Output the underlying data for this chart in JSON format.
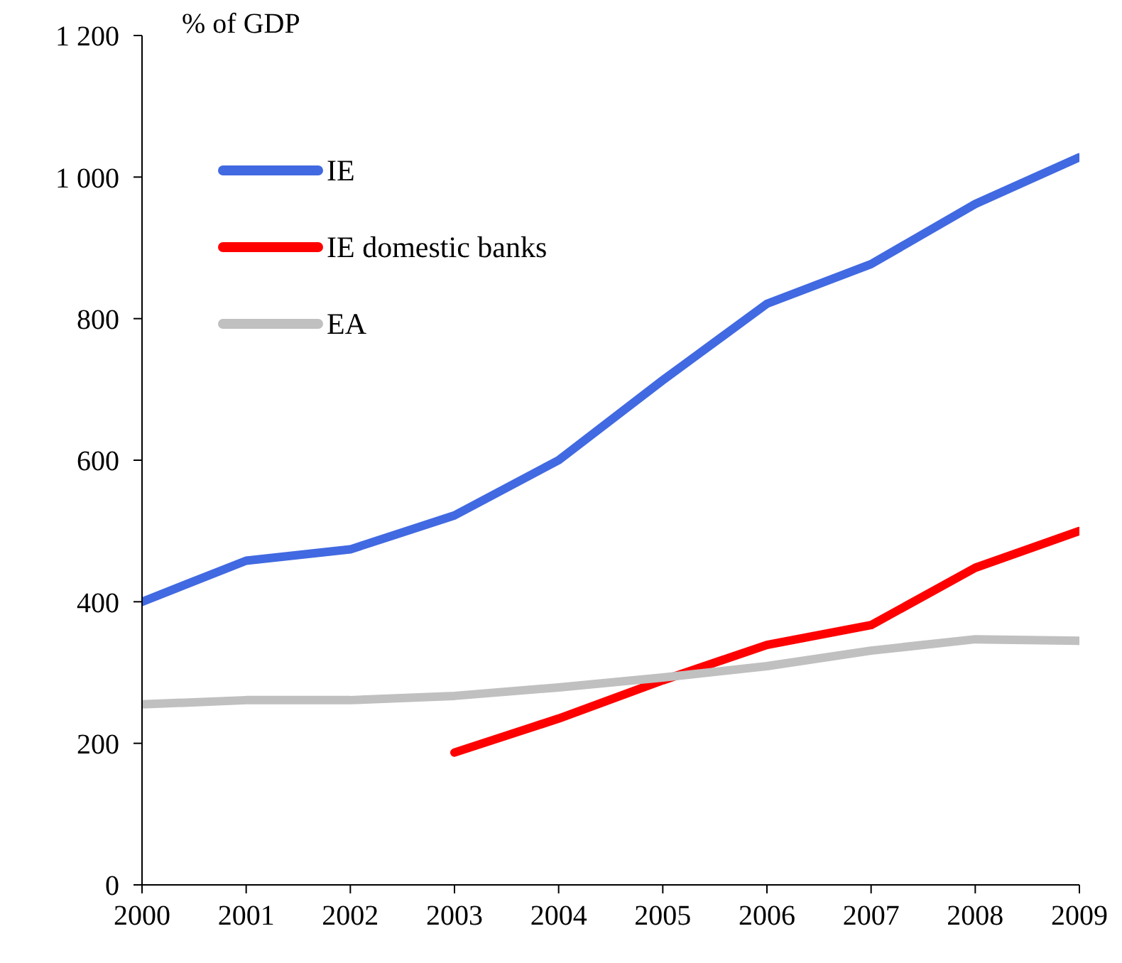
{
  "chart_data": {
    "type": "line",
    "ylabel": "% of GDP",
    "x": [
      2000,
      2001,
      2002,
      2003,
      2004,
      2005,
      2006,
      2007,
      2008,
      2009
    ],
    "xlim": [
      2000,
      2009
    ],
    "xticks": [
      2000,
      2001,
      2002,
      2003,
      2004,
      2005,
      2006,
      2007,
      2008,
      2009
    ],
    "ylim": [
      0,
      1200
    ],
    "yticks": [
      0,
      200,
      400,
      600,
      800,
      {
        "value": 1000,
        "label": "1 000"
      },
      {
        "value": 1200,
        "label": "1 200"
      }
    ],
    "grid": false,
    "legend": "top left",
    "marker": "none",
    "line_style": "solid",
    "series": [
      {
        "name": "IE",
        "color": "#4169e1",
        "values": [
          400,
          458,
          474,
          522,
          600,
          713,
          821,
          877,
          962,
          1028
        ]
      },
      {
        "name": "IE domestic banks",
        "color": "#ff0000",
        "values": [
          null,
          null,
          null,
          187,
          235,
          289,
          339,
          367,
          448,
          500
        ]
      },
      {
        "name": "EA",
        "color": "#c0c0c0",
        "values": [
          255,
          261,
          261,
          267,
          279,
          293,
          309,
          331,
          347,
          345
        ]
      }
    ]
  }
}
